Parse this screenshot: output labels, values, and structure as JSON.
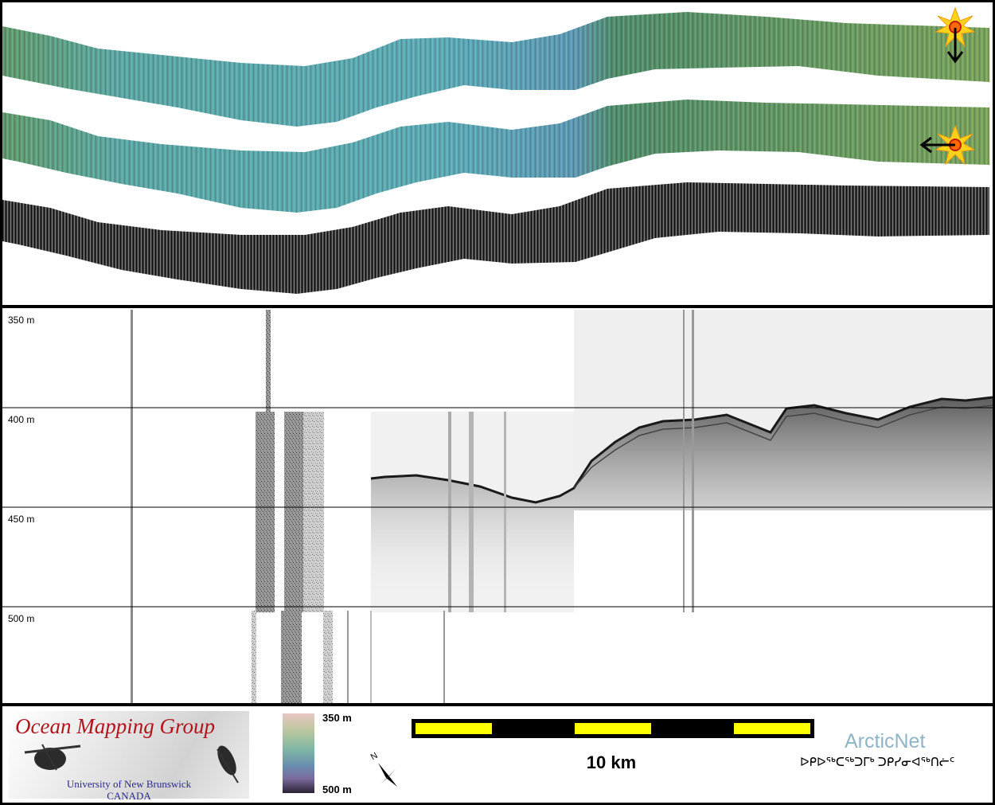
{
  "depth_scale": {
    "labels": [
      "350 m",
      "400 m",
      "450 m",
      "500 m"
    ]
  },
  "logo": {
    "title": "Ocean Mapping Group",
    "university": "University of New Brunswick",
    "country": "CANADA"
  },
  "colorbar": {
    "top_label": "350 m",
    "bottom_label": "500 m"
  },
  "scalebar": {
    "label": "10 km"
  },
  "arcticnet": {
    "name": "ArcticNet",
    "syllabics": "ᐅᑭᐅᖅᑕᖅᑐᒥᒃ ᑐᑭᓯᓂᐊᖅᑎᓖᑦ"
  },
  "icons": {
    "sun_vertical": "sun-illumination-icon",
    "sun_horizontal": "sun-illumination-icon",
    "north_arrow": "north-arrow-icon",
    "north_letter": "N"
  },
  "colors": {
    "swath_green": "#6f9a53",
    "swath_teal": "#5fa7a0",
    "swath_gray": "#3a3a3a",
    "logo_red": "#b3141c",
    "scale_yellow": "#ffff00"
  }
}
